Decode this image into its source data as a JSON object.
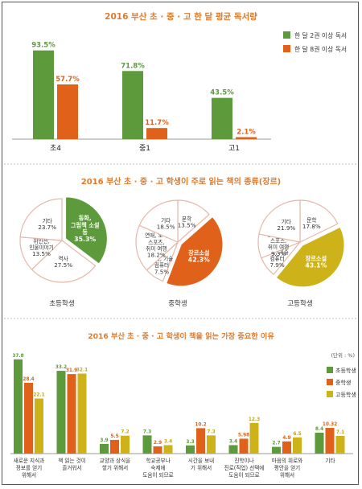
{
  "colors": {
    "green": "#5d9a3b",
    "orange": "#e0611a",
    "yellow": "#cdb21a",
    "title": "#e07a2a",
    "label_green": "#5d9a3b",
    "label_orange": "#e0611a",
    "label_yellow": "#c7a31a",
    "pie_white": "#ffffff",
    "pie_border": "#e7b8a8"
  },
  "chart_data": [
    {
      "type": "bar",
      "title": "2016 부산 초 · 중 · 고 한 달 평균 독서량",
      "categories": [
        "초4",
        "중1",
        "고1"
      ],
      "series": [
        {
          "name": "한 달 2권 이상 독서",
          "values": [
            93.5,
            71.8,
            43.5
          ],
          "labels": [
            "93.5%",
            "71.8%",
            "43.5%"
          ]
        },
        {
          "name": "한 달 8권 이상 독서",
          "values": [
            57.7,
            11.7,
            2.1
          ],
          "labels": [
            "57.7%",
            "11.7%",
            "2.1%"
          ]
        }
      ],
      "ylim": [
        0,
        100
      ],
      "legend": "top-right"
    },
    {
      "type": "pie",
      "title": "2016 부산 초 · 중 · 고 학생이 주로 읽는 책의 종류(장르)",
      "pies": [
        {
          "name": "초등학생",
          "slices": [
            {
              "label": "동화, 그림책 소설 등",
              "value": 35.3,
              "text": "35.3%",
              "highlight": "green"
            },
            {
              "label": "역사",
              "value": 27.5,
              "text": "27.5%"
            },
            {
              "label": "위인전, 인물이야기",
              "value": 13.5,
              "text": "13.5%"
            },
            {
              "label": "기타",
              "value": 23.7,
              "text": "23.7%"
            }
          ]
        },
        {
          "name": "중학생",
          "slices": [
            {
              "label": "문학",
              "value": 13.5,
              "text": "13.5%"
            },
            {
              "label": "장르소설",
              "value": 42.3,
              "text": "42.3%",
              "highlight": "orange"
            },
            {
              "label": "과학, 기술 컴퓨터",
              "value": 7.5,
              "text": "7.5%"
            },
            {
              "label": "연애, 오락 스포츠, 취미 여행",
              "value": 18.2,
              "text": "18.2%"
            },
            {
              "label": "기타",
              "value": 18.5,
              "text": "18.5%"
            }
          ]
        },
        {
          "name": "고등학생",
          "slices": [
            {
              "label": "문학",
              "value": 17.8,
              "text": "17.8%"
            },
            {
              "label": "장르소설",
              "value": 43.1,
              "text": "43.1%",
              "highlight": "yellow"
            },
            {
              "label": "과학, 기술 컴퓨터",
              "value": 7.9,
              "text": "7.9%"
            },
            {
              "label": "연애, 오락 스포츠, 취미 여행",
              "value": 9.3,
              "text": "9.3%"
            },
            {
              "label": "기타",
              "value": 21.9,
              "text": "21.9%"
            }
          ]
        }
      ]
    },
    {
      "type": "bar",
      "title": "2016 부산 초 · 중 · 고 학생이 책을 읽는 가장 중요한 이유",
      "unit": "(단위 : %)",
      "categories": [
        [
          "새로운 지식과",
          "정보를 얻기",
          "위해서"
        ],
        [
          "책 읽는 것이",
          "즐거워서"
        ],
        [
          "교양과 상식을",
          "쌓기 위해서"
        ],
        [
          "학교공부나",
          "숙제에",
          "도움이 되므로"
        ],
        [
          "시간을 보내",
          "기 위해서"
        ],
        [
          "진학이나",
          "진로(직업) 선택에",
          "도움이 되므로"
        ],
        [
          "마음의 위로와",
          "평안을 얻기",
          "위해서"
        ],
        [
          "기타"
        ]
      ],
      "series": [
        {
          "name": "초등학생",
          "values": [
            37.8,
            33.2,
            3.9,
            7.3,
            3.3,
            3.4,
            2.7,
            8.4
          ],
          "labels": [
            "37.8",
            "33.2",
            "3.9",
            "7.3",
            "3.3",
            "3.4",
            "2.7",
            "8.4"
          ]
        },
        {
          "name": "중학생",
          "values": [
            28.4,
            31.9,
            5.5,
            2.9,
            10.2,
            5.98,
            4.9,
            10.32
          ],
          "labels": [
            "28.4",
            "31.9",
            "5.5",
            "2.9",
            "10.2",
            "5.98",
            "4.9",
            "10.32"
          ]
        },
        {
          "name": "고등학생",
          "values": [
            22.1,
            32.1,
            7.2,
            3.4,
            7.3,
            12.3,
            6.5,
            7.1
          ],
          "labels": [
            "22.1",
            "32.1",
            "7.2",
            "3.4",
            "7.3",
            "12.3",
            "6.5",
            "7.1"
          ]
        }
      ],
      "ylim": [
        0,
        40
      ],
      "legend": "right"
    }
  ]
}
